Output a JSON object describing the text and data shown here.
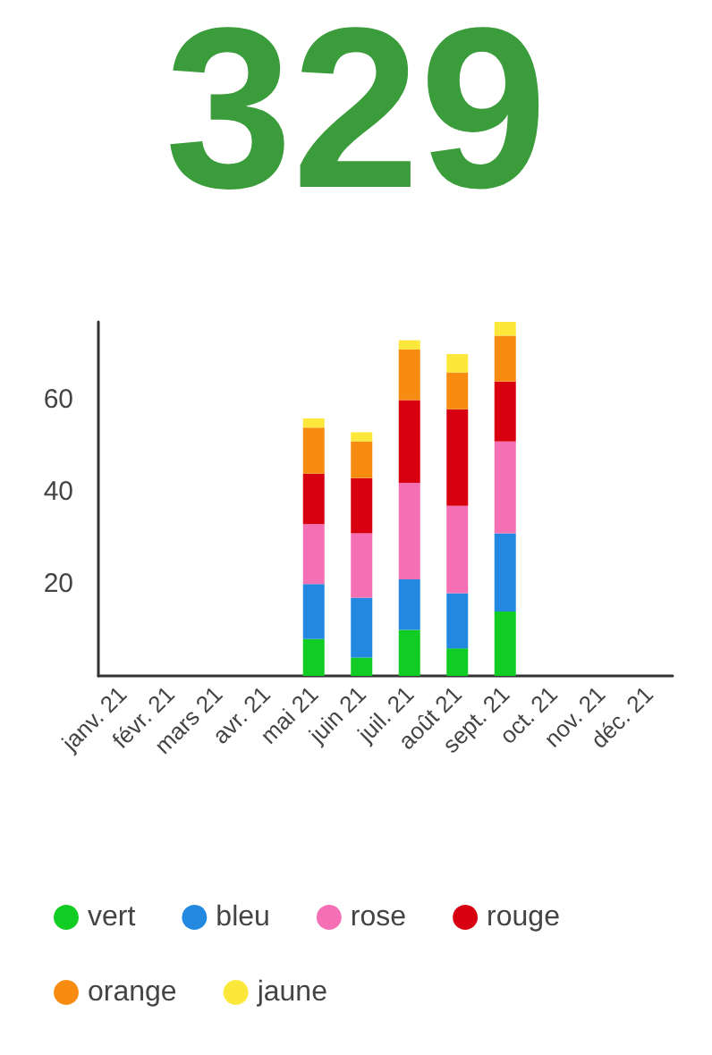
{
  "chart_data": {
    "type": "bar",
    "title": "329",
    "stacked": true,
    "legend": "bottom",
    "grid": false,
    "categories": [
      "janv. 21",
      "févr. 21",
      "mars 21",
      "avr. 21",
      "mai 21",
      "juin 21",
      "juil. 21",
      "août 21",
      "sept. 21",
      "oct. 21",
      "nov. 21",
      "déc. 21"
    ],
    "ylim": [
      0,
      77
    ],
    "yticks": [
      20,
      40,
      60
    ],
    "series": [
      {
        "name": "vert",
        "color": "#11cc22",
        "values": [
          null,
          null,
          null,
          null,
          8,
          4,
          10,
          6,
          14,
          null,
          null,
          null
        ]
      },
      {
        "name": "bleu",
        "color": "#2288e0",
        "values": [
          null,
          null,
          null,
          null,
          12,
          13,
          11,
          12,
          17,
          null,
          null,
          null
        ]
      },
      {
        "name": "rose",
        "color": "#f46fb4",
        "values": [
          null,
          null,
          null,
          null,
          13,
          14,
          21,
          19,
          20,
          null,
          null,
          null
        ]
      },
      {
        "name": "rouge",
        "color": "#d80010",
        "values": [
          null,
          null,
          null,
          null,
          11,
          12,
          18,
          21,
          13,
          null,
          null,
          null
        ]
      },
      {
        "name": "orange",
        "color": "#f78c10",
        "values": [
          null,
          null,
          null,
          null,
          10,
          8,
          11,
          8,
          10,
          null,
          null,
          null
        ]
      },
      {
        "name": "jaune",
        "color": "#fce83a",
        "values": [
          null,
          null,
          null,
          null,
          2,
          2,
          2,
          4,
          3,
          null,
          null,
          null
        ]
      }
    ]
  }
}
